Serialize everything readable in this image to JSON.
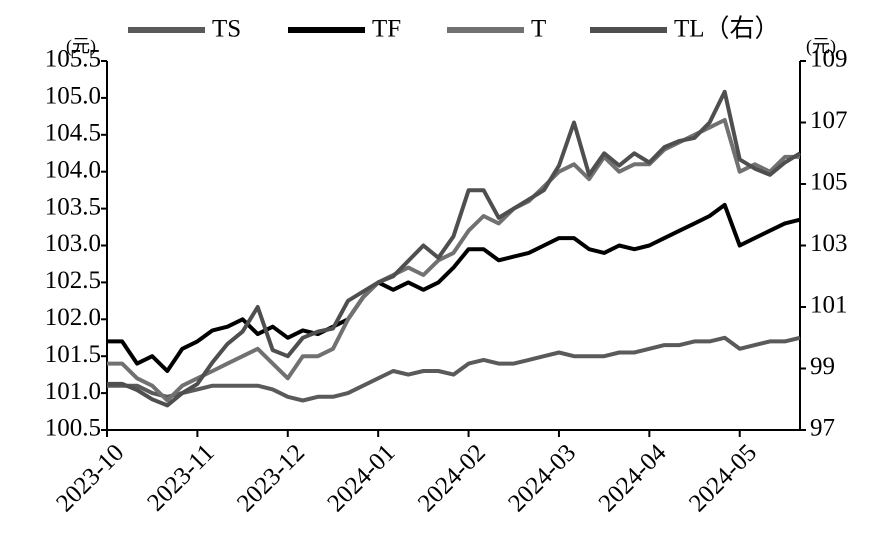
{
  "chart_data": {
    "type": "line",
    "categories": [
      "2023-10",
      null,
      null,
      null,
      null,
      null,
      "2023-11",
      null,
      null,
      null,
      null,
      null,
      "2023-12",
      null,
      null,
      null,
      null,
      null,
      "2024-01",
      null,
      null,
      null,
      null,
      null,
      "2024-02",
      null,
      null,
      null,
      null,
      null,
      "2024-03",
      null,
      null,
      null,
      null,
      null,
      "2024-04",
      null,
      null,
      null,
      null,
      null,
      "2024-05",
      null,
      null,
      null,
      null
    ],
    "ylabel": "(元)",
    "y2label": "(元)",
    "ylim": [
      100.5,
      105.5
    ],
    "yticks": [
      100.5,
      {
        "value": 101,
        "label": "101.0"
      },
      101.5,
      {
        "value": 102,
        "label": "102.0"
      },
      102.5,
      {
        "value": 103,
        "label": "103.0"
      },
      103.5,
      {
        "value": 104,
        "label": "104.0"
      },
      104.5,
      {
        "value": 105,
        "label": "105.0"
      },
      105.5
    ],
    "y2lim": [
      97,
      109
    ],
    "y2ticks": [
      97,
      99,
      101,
      103,
      105,
      107,
      109
    ],
    "grid": false,
    "legend": "top",
    "series": [
      {
        "name": "TS",
        "color": "#5a5a5a",
        "values": [
          101.1,
          101.1,
          101.1,
          101.0,
          100.95,
          101.0,
          101.05,
          101.1,
          101.1,
          101.1,
          101.1,
          101.05,
          100.95,
          100.9,
          100.95,
          100.95,
          101.0,
          101.1,
          101.2,
          101.3,
          101.25,
          101.3,
          101.3,
          101.25,
          101.4,
          101.45,
          101.4,
          101.4,
          101.45,
          101.5,
          101.55,
          101.5,
          101.5,
          101.5,
          101.55,
          101.55,
          101.6,
          101.65,
          101.65,
          101.7,
          101.7,
          101.75,
          101.6,
          101.65,
          101.7,
          101.7,
          101.75
        ]
      },
      {
        "name": "TF",
        "color": "#000000",
        "values": [
          101.7,
          101.7,
          101.4,
          101.5,
          101.3,
          101.6,
          101.7,
          101.85,
          101.9,
          102.0,
          101.8,
          101.9,
          101.75,
          101.85,
          101.8,
          101.9,
          102.0,
          102.3,
          102.5,
          102.4,
          102.5,
          102.4,
          102.5,
          102.7,
          102.95,
          102.95,
          102.8,
          102.85,
          102.9,
          103.0,
          103.1,
          103.1,
          102.95,
          102.9,
          103.0,
          102.95,
          103.0,
          103.1,
          103.2,
          103.3,
          103.4,
          103.55,
          103.0,
          103.1,
          103.2,
          103.3,
          103.35
        ]
      },
      {
        "name": "T",
        "color": "#717171",
        "values": [
          101.4,
          101.4,
          101.2,
          101.1,
          100.9,
          101.1,
          101.2,
          101.3,
          101.4,
          101.5,
          101.6,
          101.4,
          101.2,
          101.5,
          101.5,
          101.6,
          102.0,
          102.3,
          102.5,
          102.6,
          102.7,
          102.6,
          102.8,
          102.9,
          103.2,
          103.4,
          103.3,
          103.5,
          103.6,
          103.8,
          104.0,
          104.1,
          103.9,
          104.2,
          104.0,
          104.1,
          104.1,
          104.3,
          104.4,
          104.5,
          104.6,
          104.7,
          104.0,
          104.1,
          104.0,
          104.2,
          104.2
        ]
      },
      {
        "name": "TL（右）",
        "color": "#4f4f4f",
        "axis": "y2",
        "values": [
          98.5,
          98.5,
          98.3,
          98.0,
          97.8,
          98.2,
          98.5,
          99.2,
          99.8,
          100.2,
          101.0,
          99.6,
          99.4,
          100.0,
          100.2,
          100.3,
          101.2,
          101.5,
          101.8,
          102.0,
          102.5,
          103.0,
          102.6,
          103.3,
          104.8,
          104.8,
          103.9,
          104.2,
          104.5,
          104.8,
          105.6,
          107.0,
          105.3,
          106.0,
          105.6,
          106.0,
          105.7,
          106.2,
          106.4,
          106.5,
          107.0,
          108.0,
          105.8,
          105.5,
          105.3,
          105.7,
          106.0
        ]
      }
    ]
  }
}
